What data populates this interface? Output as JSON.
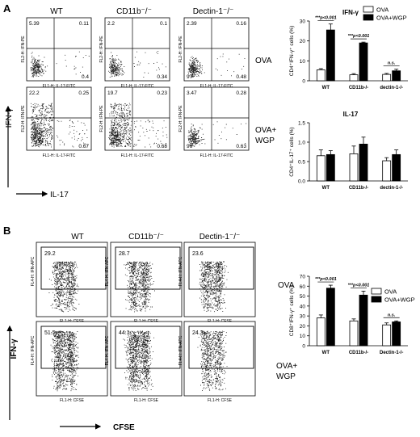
{
  "panel_labels": [
    "A",
    "B"
  ],
  "panelA": {
    "columns": [
      "WT",
      "CD11b⁻/⁻",
      "Dectin-1⁻/⁻"
    ],
    "rows": [
      "OVA",
      "OVA+\nWGP"
    ],
    "x_axis": "IL-17",
    "y_axis": "IFN-γ",
    "plot_xlabel": "FL1-H: IL-17-FITC",
    "plot_ylabel": "FL2-H: IFN-PE",
    "quadrants": [
      [
        [
          "5.39",
          "0.11",
          "",
          "0.4"
        ],
        [
          "2.2",
          "0.1",
          "",
          "0.34"
        ],
        [
          "2.39",
          "0.16",
          "97",
          "0.48"
        ]
      ],
      [
        [
          "22.2",
          "0.25",
          "",
          "0.67"
        ],
        [
          "19.7",
          "0.23",
          "",
          "0.68"
        ],
        [
          "3.47",
          "0.28",
          "96",
          "0.63"
        ]
      ]
    ]
  },
  "panelB": {
    "columns": [
      "WT",
      "CD11b⁻/⁻",
      "Dectin-1⁻/⁻"
    ],
    "rows": [
      "OVA",
      "OVA+\nWGP"
    ],
    "x_axis": "CFSE",
    "y_axis": "IFN-γ",
    "plot_xlabel": "FL1-H: CFSE",
    "plot_ylabel": "FL4-H: IFN-APC",
    "gates": [
      [
        "29.2",
        "28.7",
        "23.6"
      ],
      [
        "51.5",
        "44.1",
        "24.3"
      ]
    ]
  },
  "chart_data": [
    {
      "type": "bar",
      "title": "IFN-γ",
      "ylabel": "CD4⁺IFN-γ⁺ cells (%)",
      "categories": [
        "WT",
        "CD11b-/-",
        "dectin-1-/-"
      ],
      "series": [
        {
          "name": "OVA",
          "values": [
            5.5,
            3.0,
            3.2
          ],
          "errors": [
            0.6,
            0.6,
            0.5
          ]
        },
        {
          "name": "OVA+WGP",
          "values": [
            25.5,
            19.0,
            5.0
          ],
          "errors": [
            3.0,
            0.4,
            0.8
          ]
        }
      ],
      "ylim": [
        0,
        30
      ],
      "yticks": [
        0,
        10,
        20,
        30
      ],
      "legend": "top-right",
      "annotations": [
        "***p<0.001",
        "***p<0.001",
        "n.s."
      ]
    },
    {
      "type": "bar",
      "title": "IL-17",
      "ylabel": "CD4⁺IL-17⁺ cells (%)",
      "categories": [
        "WT",
        "CD11b-/-",
        "dectin-1-/-"
      ],
      "series": [
        {
          "name": "OVA",
          "values": [
            0.65,
            0.7,
            0.52
          ],
          "errors": [
            0.15,
            0.2,
            0.08
          ]
        },
        {
          "name": "OVA+WGP",
          "values": [
            0.68,
            0.95,
            0.68
          ],
          "errors": [
            0.1,
            0.18,
            0.12
          ]
        }
      ],
      "ylim": [
        0,
        1.5
      ],
      "yticks": [
        0.0,
        0.5,
        1.0,
        1.5
      ]
    },
    {
      "type": "bar",
      "title": "",
      "ylabel": "CD8⁺IFN-γ⁺ cells (%)",
      "categories": [
        "WT",
        "CD11b-/-",
        "Dectin-1-/-"
      ],
      "series": [
        {
          "name": "OVA",
          "values": [
            28,
            25,
            21
          ],
          "errors": [
            3,
            2,
            2
          ]
        },
        {
          "name": "OVA+WGP",
          "values": [
            58,
            51,
            24
          ],
          "errors": [
            3,
            4,
            1
          ]
        }
      ],
      "ylim": [
        0,
        70
      ],
      "yticks": [
        0,
        10,
        20,
        30,
        40,
        50,
        60,
        70
      ],
      "legend": "top-right",
      "annotations": [
        "***p<0.001",
        "***p<0.001",
        "n.s."
      ]
    }
  ]
}
